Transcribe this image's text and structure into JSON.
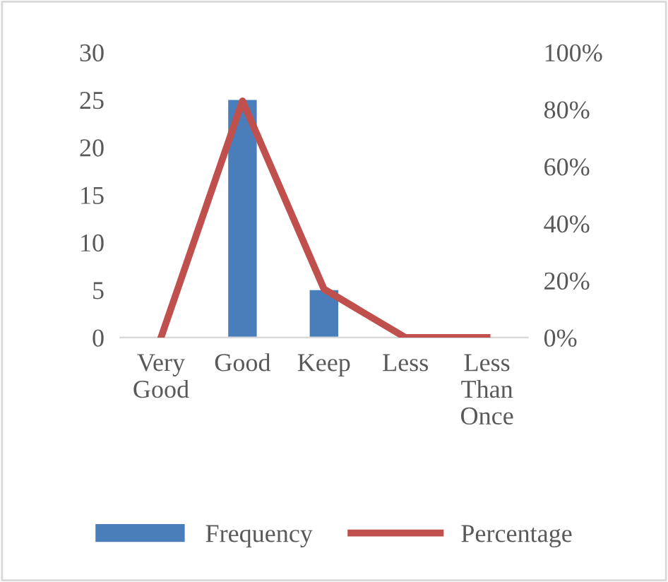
{
  "chart_data": {
    "type": "bar",
    "categories": [
      "Very Good",
      "Good",
      "Keep",
      "Less",
      "Less Than Once"
    ],
    "series": [
      {
        "name": "Frequency",
        "color": "#4a7ebb",
        "values": [
          0,
          25,
          5,
          0,
          0
        ]
      },
      {
        "name": "Percentage",
        "type": "line",
        "axis": "y2",
        "color": "#c0504d",
        "values": [
          0,
          83,
          17,
          0,
          0
        ]
      }
    ],
    "ylim": [
      0,
      30
    ],
    "yticks": [
      0,
      5,
      10,
      15,
      20,
      25,
      30
    ],
    "y2lim": [
      0,
      100
    ],
    "y2ticks": [
      {
        "value": 0,
        "label": "0%"
      },
      {
        "value": 20,
        "label": "20%"
      },
      {
        "value": 40,
        "label": "40%"
      },
      {
        "value": 60,
        "label": "60%"
      },
      {
        "value": 80,
        "label": "80%"
      },
      {
        "value": 100,
        "label": "100%"
      }
    ],
    "grid": false,
    "legend": "bottom",
    "marker": "none",
    "line_style": "solid"
  }
}
